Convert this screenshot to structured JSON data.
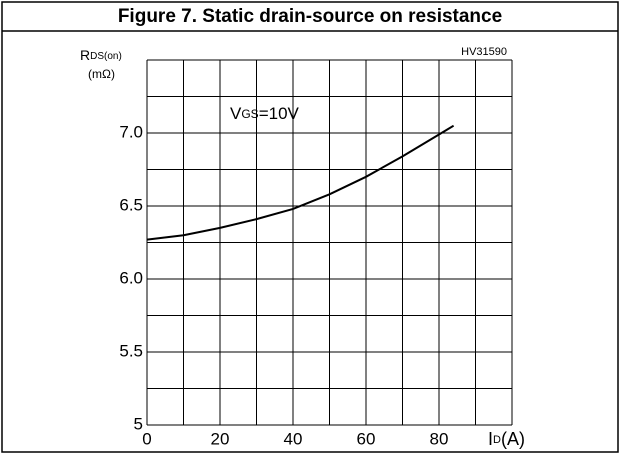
{
  "chart_data": {
    "type": "line",
    "title": "Figure 7. Static drain-source on resistance",
    "code": "HV31590",
    "ylabel": {
      "main": "R",
      "sub": "DS(on)"
    },
    "yunit": "(mΩ)",
    "xlabel": {
      "main": "I",
      "sub": "D",
      "unit": "(A)"
    },
    "annotation": {
      "main": "V",
      "sub": "GS",
      "rest": "=10V"
    },
    "x": [
      0,
      10,
      20,
      30,
      40,
      50,
      60,
      70,
      80,
      84
    ],
    "series": [
      {
        "name": "VGS=10V",
        "color": "#000000",
        "values": [
          6.27,
          6.3,
          6.35,
          6.41,
          6.48,
          6.58,
          6.7,
          6.84,
          6.99,
          7.05
        ]
      }
    ],
    "xlim": [
      0,
      100
    ],
    "ylim": [
      5,
      7.5
    ],
    "xticks": [
      0,
      20,
      40,
      60,
      80
    ],
    "yticks": [
      5,
      5.5,
      {
        "value": 6,
        "label": "6.0"
      },
      {
        "value": 6.5,
        "label": "6.5"
      },
      {
        "value": 7,
        "label": "7.0"
      }
    ],
    "xgrid": [
      0,
      10,
      20,
      30,
      40,
      50,
      60,
      70,
      80,
      90,
      100
    ],
    "ygrid": [
      5,
      5.25,
      5.5,
      5.75,
      6,
      6.25,
      6.5,
      6.75,
      7,
      7.25,
      7.5
    ],
    "grid": true
  }
}
